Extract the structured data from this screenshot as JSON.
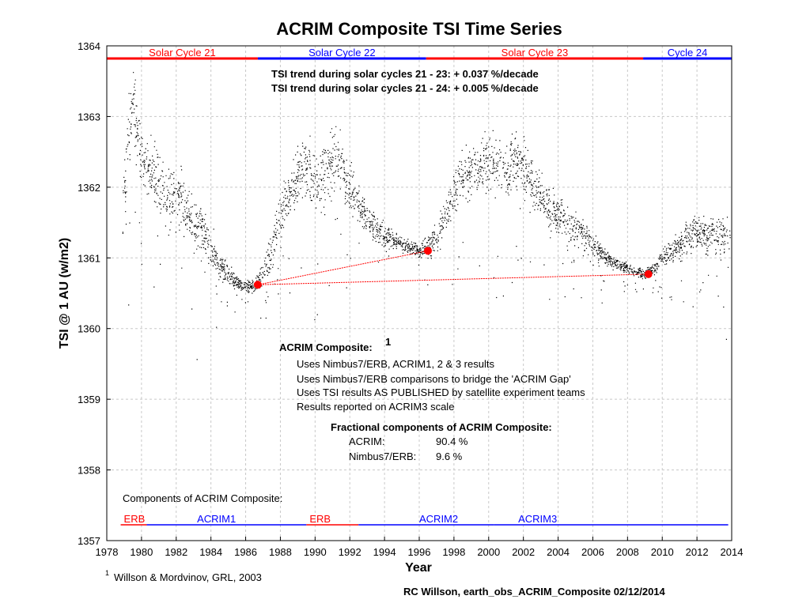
{
  "chart_data": {
    "type": "scatter",
    "title": "ACRIM Composite TSI Time Series",
    "xlabel": "Year",
    "ylabel": "TSI @ 1 AU (w/m2)",
    "xlim": [
      1978,
      2014
    ],
    "ylim": [
      1357,
      1364
    ],
    "xticks": [
      1978,
      1980,
      1982,
      1984,
      1986,
      1988,
      1990,
      1992,
      1994,
      1996,
      1998,
      2000,
      2002,
      2004,
      2006,
      2008,
      2010,
      2012,
      2014
    ],
    "yticks": [
      1357,
      1358,
      1359,
      1360,
      1361,
      1362,
      1363,
      1364
    ],
    "grid": true,
    "colors": {
      "red": "#ff0000",
      "blue": "#0000ff",
      "data": "#000000"
    },
    "solar_cycles": [
      {
        "label": "Solar Cycle 21",
        "start": 1978.0,
        "end": 1986.7,
        "color": "red"
      },
      {
        "label": "Solar Cycle 22",
        "start": 1986.7,
        "end": 1996.4,
        "color": "blue"
      },
      {
        "label": "Solar Cycle 23",
        "start": 1996.4,
        "end": 2008.9,
        "color": "red"
      },
      {
        "label": "Cycle 24",
        "start": 2008.9,
        "end": 2014.0,
        "color": "blue"
      }
    ],
    "trend_points": [
      {
        "x": 1986.7,
        "y": 1360.62
      },
      {
        "x": 1996.5,
        "y": 1361.1
      },
      {
        "x": 2009.2,
        "y": 1360.77
      }
    ],
    "trend_lines": [
      {
        "from": 0,
        "to": 1
      },
      {
        "from": 0,
        "to": 2
      }
    ],
    "components": [
      {
        "label": "ERB",
        "start": 1978.8,
        "end": 1980.3,
        "color": "red"
      },
      {
        "label": "ACRIM1",
        "start": 1980.3,
        "end": 1989.5,
        "color": "blue"
      },
      {
        "label": "ERB",
        "start": 1989.5,
        "end": 1992.5,
        "color": "red"
      },
      {
        "label": "ACRIM2",
        "start": 1992.5,
        "end": 2000.3,
        "color": "blue"
      },
      {
        "label": "ACRIM3",
        "start": 2000.3,
        "end": 2013.8,
        "color": "blue"
      }
    ],
    "series_envelope": [
      [
        1978.9,
        1361.5,
        0.7
      ],
      [
        1979.2,
        1362.8,
        0.8
      ],
      [
        1979.5,
        1363.3,
        0.6
      ],
      [
        1980.0,
        1362.3,
        0.6
      ],
      [
        1980.5,
        1362.2,
        0.6
      ],
      [
        1981.0,
        1362.0,
        0.7
      ],
      [
        1981.5,
        1361.8,
        0.7
      ],
      [
        1982.0,
        1361.9,
        0.6
      ],
      [
        1982.5,
        1361.7,
        0.6
      ],
      [
        1983.0,
        1361.5,
        0.6
      ],
      [
        1983.5,
        1361.4,
        0.5
      ],
      [
        1984.0,
        1361.1,
        0.4
      ],
      [
        1984.5,
        1360.9,
        0.3
      ],
      [
        1985.0,
        1360.75,
        0.2
      ],
      [
        1985.5,
        1360.65,
        0.15
      ],
      [
        1986.0,
        1360.6,
        0.15
      ],
      [
        1986.5,
        1360.6,
        0.15
      ],
      [
        1987.0,
        1360.8,
        0.25
      ],
      [
        1987.5,
        1361.1,
        0.35
      ],
      [
        1988.0,
        1361.6,
        0.45
      ],
      [
        1988.5,
        1361.9,
        0.5
      ],
      [
        1989.0,
        1362.2,
        0.6
      ],
      [
        1989.5,
        1362.3,
        0.6
      ],
      [
        1990.0,
        1362.1,
        0.6
      ],
      [
        1990.5,
        1362.2,
        0.6
      ],
      [
        1991.0,
        1362.4,
        0.6
      ],
      [
        1991.5,
        1362.3,
        0.6
      ],
      [
        1992.0,
        1362.0,
        0.5
      ],
      [
        1992.5,
        1361.8,
        0.4
      ],
      [
        1993.0,
        1361.55,
        0.3
      ],
      [
        1993.5,
        1361.4,
        0.25
      ],
      [
        1994.0,
        1361.35,
        0.25
      ],
      [
        1994.5,
        1361.25,
        0.2
      ],
      [
        1995.0,
        1361.2,
        0.15
      ],
      [
        1995.5,
        1361.15,
        0.15
      ],
      [
        1996.0,
        1361.1,
        0.15
      ],
      [
        1996.5,
        1361.15,
        0.2
      ],
      [
        1997.0,
        1361.3,
        0.3
      ],
      [
        1997.5,
        1361.6,
        0.4
      ],
      [
        1998.0,
        1361.9,
        0.45
      ],
      [
        1998.5,
        1362.1,
        0.5
      ],
      [
        1999.0,
        1362.2,
        0.5
      ],
      [
        1999.5,
        1362.3,
        0.5
      ],
      [
        2000.0,
        1362.4,
        0.55
      ],
      [
        2000.5,
        1362.3,
        0.55
      ],
      [
        2001.0,
        1362.2,
        0.55
      ],
      [
        2001.5,
        1362.4,
        0.55
      ],
      [
        2002.0,
        1362.3,
        0.55
      ],
      [
        2002.5,
        1362.1,
        0.5
      ],
      [
        2003.0,
        1361.9,
        0.5
      ],
      [
        2003.5,
        1361.7,
        0.45
      ],
      [
        2004.0,
        1361.6,
        0.4
      ],
      [
        2004.5,
        1361.5,
        0.35
      ],
      [
        2005.0,
        1361.4,
        0.35
      ],
      [
        2005.5,
        1361.3,
        0.3
      ],
      [
        2006.0,
        1361.2,
        0.25
      ],
      [
        2006.5,
        1361.05,
        0.2
      ],
      [
        2007.0,
        1360.95,
        0.15
      ],
      [
        2007.5,
        1360.9,
        0.12
      ],
      [
        2008.0,
        1360.85,
        0.1
      ],
      [
        2008.5,
        1360.8,
        0.1
      ],
      [
        2009.0,
        1360.78,
        0.1
      ],
      [
        2009.5,
        1360.85,
        0.12
      ],
      [
        2010.0,
        1361.0,
        0.2
      ],
      [
        2010.5,
        1361.1,
        0.25
      ],
      [
        2011.0,
        1361.2,
        0.3
      ],
      [
        2011.5,
        1361.3,
        0.35
      ],
      [
        2012.0,
        1361.4,
        0.4
      ],
      [
        2012.5,
        1361.3,
        0.4
      ],
      [
        2013.0,
        1361.3,
        0.4
      ],
      [
        2013.5,
        1361.3,
        0.45
      ],
      [
        2013.9,
        1361.2,
        0.45
      ]
    ]
  },
  "annotations": {
    "trend1": "TSI trend during solar cycles 21 - 23: + 0.037 %/decade",
    "trend2": "TSI trend during solar cycles 21 - 24: + 0.005 %/decade",
    "composite_title": "ACRIM Composite:",
    "composite_sup": "1",
    "uses1": "Uses Nimbus7/ERB, ACRIM1, 2 & 3  results",
    "uses2": "Uses Nimbus7/ERB comparisons to bridge the 'ACRIM Gap'",
    "uses3": "Uses TSI results AS PUBLISHED by satellite experiment teams",
    "uses4": "Results reported on ACRIM3 scale",
    "fractional_title": "Fractional components of ACRIM Composite:",
    "acrim_label": "ACRIM:",
    "acrim_value": "90.4 %",
    "nimbus_label": "Nimbus7/ERB:",
    "nimbus_value": "9.6 %",
    "components_title": "Components of ACRIM Composite:",
    "footnote_sup": "1",
    "footnote": "Willson & Mordvinov, GRL, 2003",
    "credit": "RC Willson, earth_obs_ACRIM_Composite  02/12/2014"
  }
}
